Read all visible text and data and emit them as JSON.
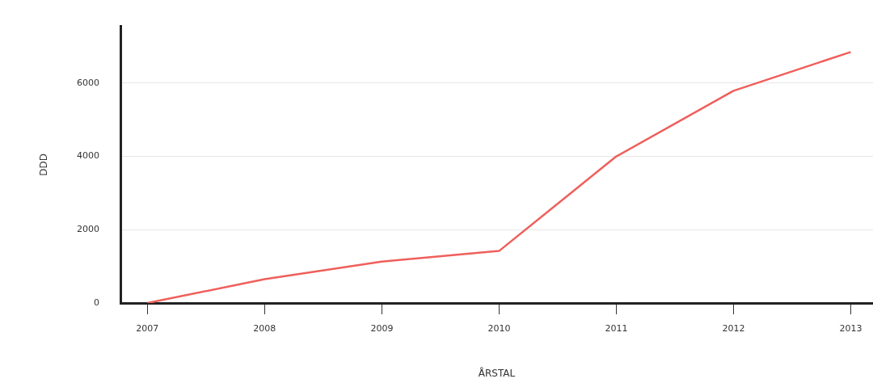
{
  "chart_data": {
    "type": "line",
    "xlabel": "ÅRSTAL",
    "ylabel": "DDD",
    "x": [
      2007,
      2008,
      2009,
      2010,
      2011,
      2012,
      2013
    ],
    "series": [
      {
        "color": "#ef5f5b",
        "values": [
          0,
          650,
          1130,
          1420,
          4000,
          5790,
          6850
        ]
      }
    ],
    "xlim": [
      2006.77,
      2013.19
    ],
    "xticks": [
      2007,
      2008,
      2009,
      2010,
      2011,
      2012,
      2013
    ],
    "ylim": [
      0,
      7550
    ],
    "yticks": [
      0,
      2000,
      4000,
      6000
    ],
    "grid": "y",
    "legend": false,
    "marker": "none",
    "line_style": "solid"
  }
}
